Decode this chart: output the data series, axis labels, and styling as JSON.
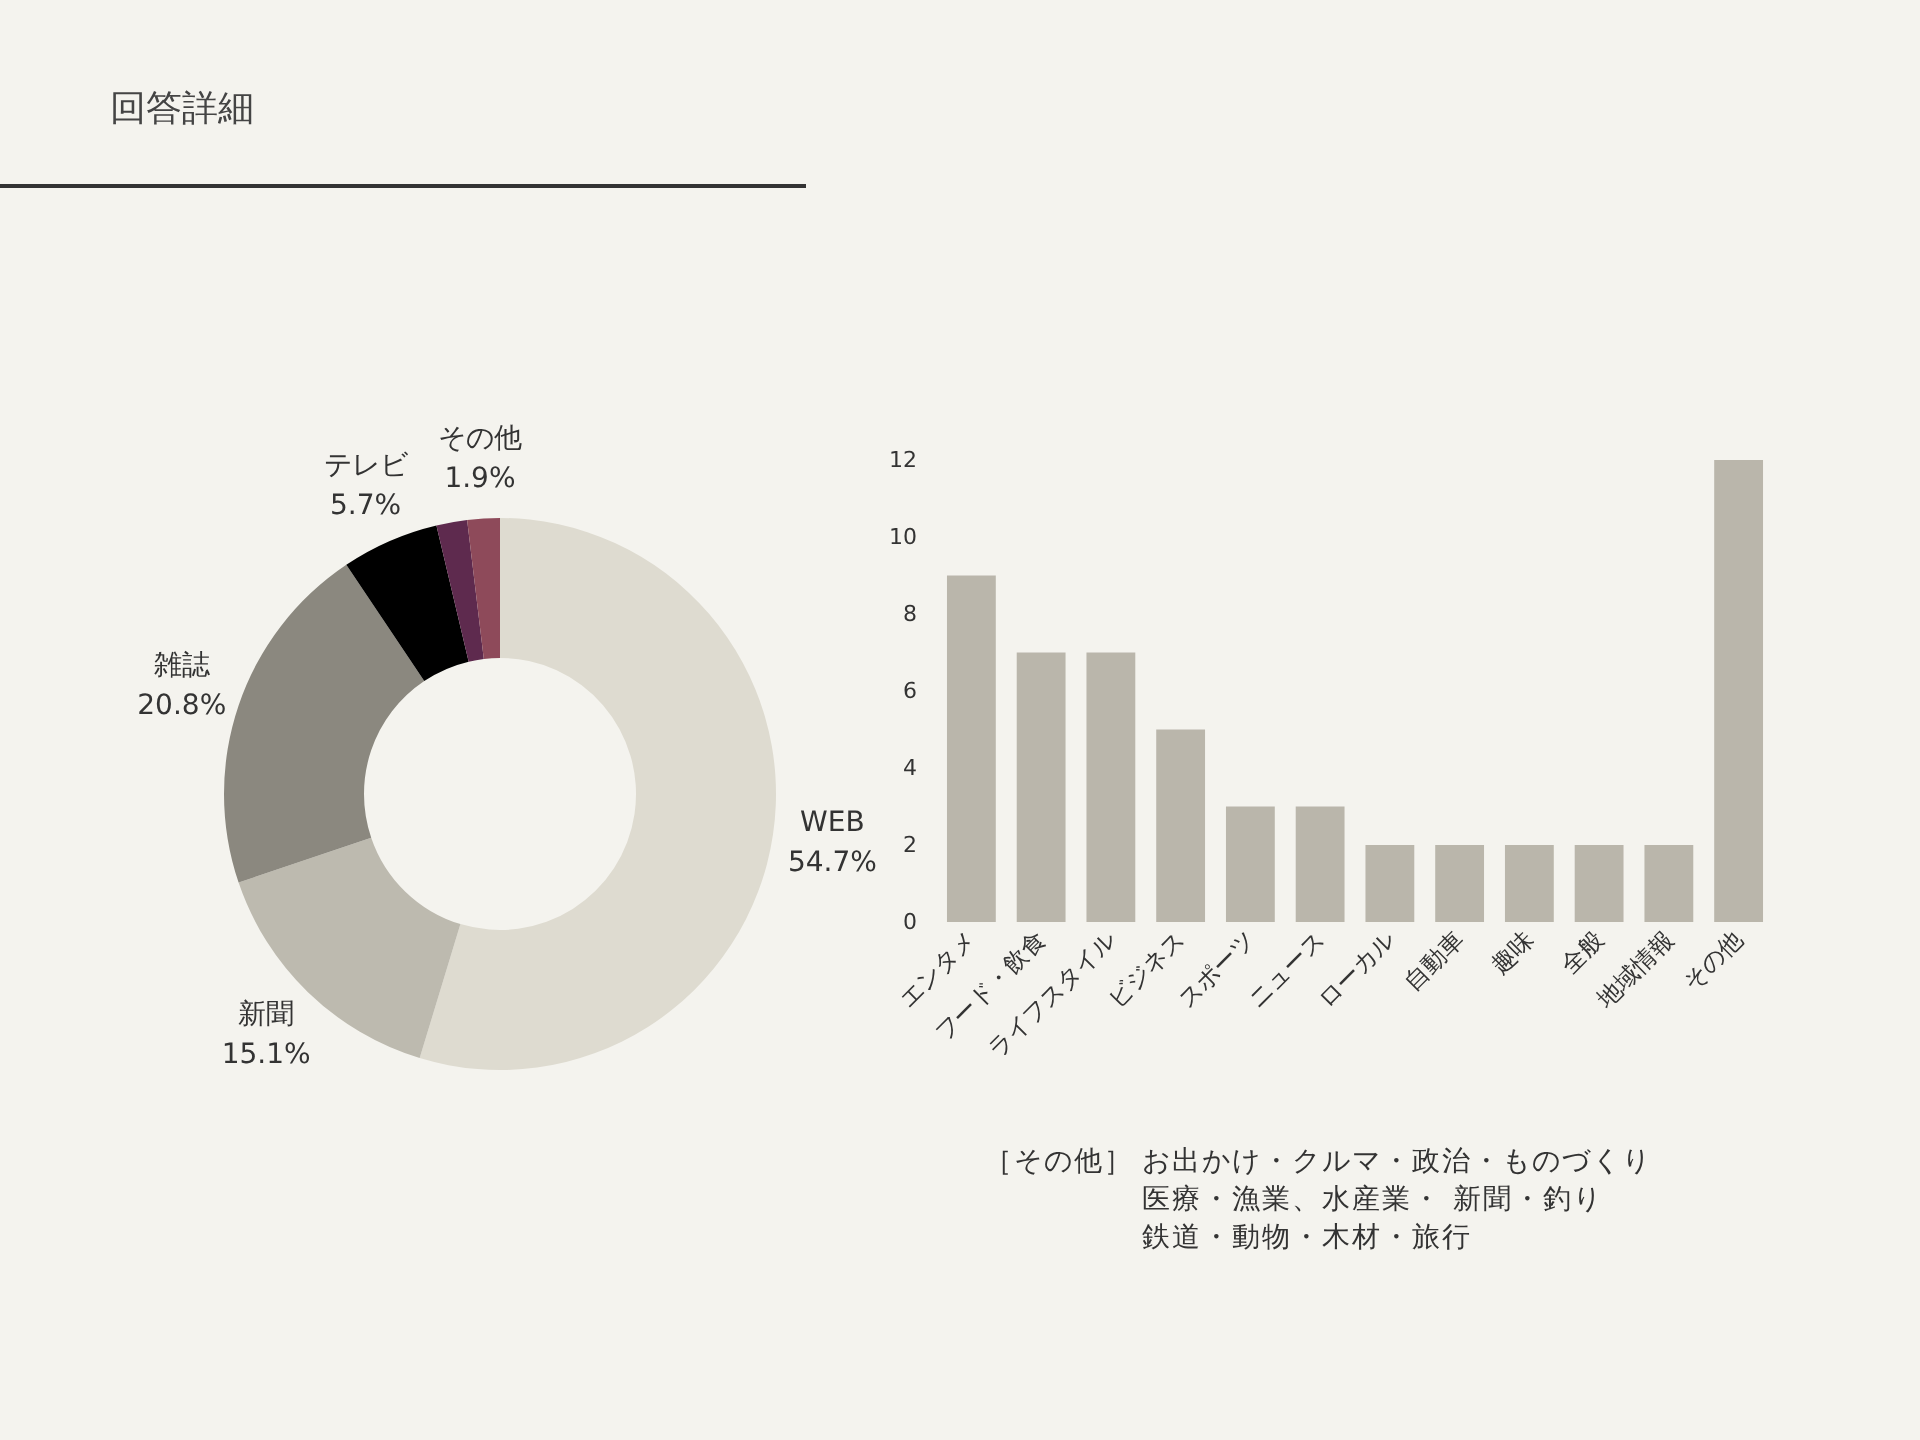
{
  "chart_data": [
    {
      "type": "donut",
      "title": "回答詳細",
      "categories": [
        "WEB",
        "新聞",
        "雑誌",
        "テレビ",
        null,
        "その他"
      ],
      "values": [
        54.7,
        15.1,
        20.8,
        5.7,
        1.8,
        1.9
      ],
      "value_labels": [
        "54.7%",
        "15.1%",
        "20.8%",
        "5.7%",
        null,
        "1.9%"
      ],
      "colors": [
        "#dedbd0",
        "#bdbaaf",
        "#8b887f",
        "#000000",
        "#5e2a4e",
        "#8e4a5a"
      ]
    },
    {
      "type": "bar",
      "categories": [
        "エンタメ",
        "フード・飲食",
        "ライフスタイル",
        "ビジネス",
        "スポーツ",
        "ニュース",
        "ローカル",
        "自動車",
        "趣味",
        "全般",
        "地域情報",
        "その他"
      ],
      "values": [
        9,
        7,
        7,
        5,
        3,
        3,
        2,
        2,
        2,
        2,
        2,
        12
      ],
      "color": "#bab6ab",
      "ylim": [
        0,
        12
      ],
      "yticks": [
        0,
        2,
        4,
        6,
        8,
        10,
        12
      ],
      "annotations": [
        "［その他］",
        "お出かけ・クルマ・政治・ものづくり",
        "医療・漁業、水産業・ 新聞・釣り",
        "鉄道・動物・木材・旅行"
      ]
    }
  ]
}
